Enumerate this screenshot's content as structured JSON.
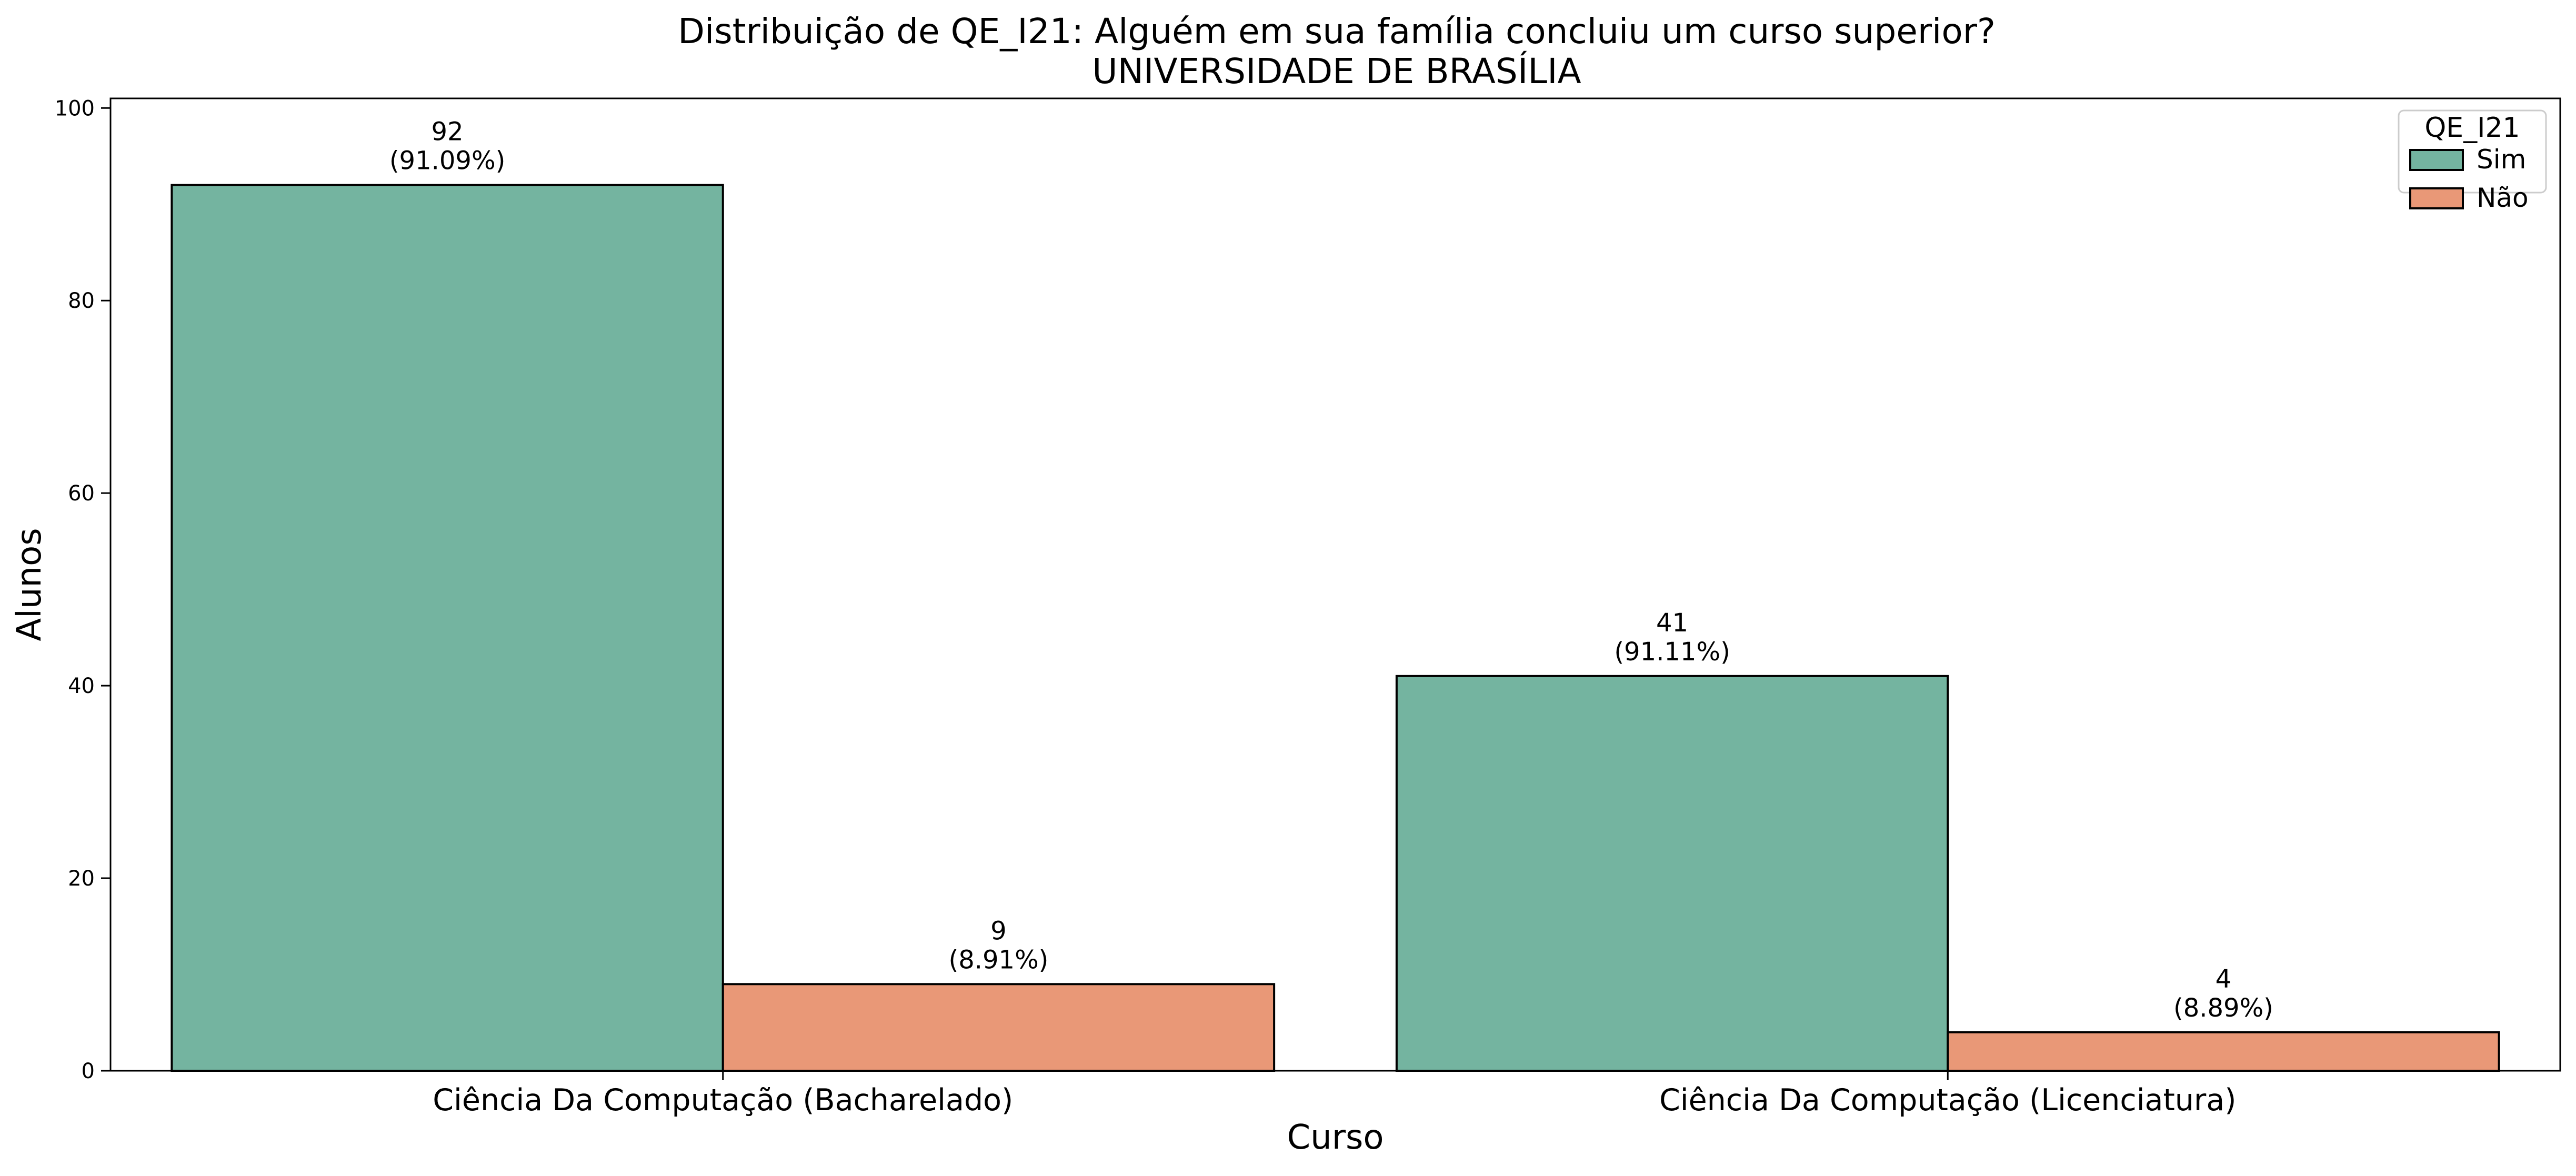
{
  "chart_data": {
    "type": "bar",
    "title": "Distribuição de QE_I21: Alguém em sua família concluiu um curso superior?",
    "subtitle": "UNIVERSIDADE DE BRASÍLIA",
    "xlabel": "Curso",
    "ylabel": "Alunos",
    "categories": [
      "Ciência Da Computação (Bacharelado)",
      "Ciência Da Computação (Licenciatura)"
    ],
    "series": [
      {
        "name": "Sim",
        "color": "#74b4a0",
        "values": [
          92,
          41
        ],
        "labels": [
          [
            "92",
            "(91.09%)"
          ],
          [
            "41",
            "(91.11%)"
          ]
        ]
      },
      {
        "name": "Não",
        "color": "#e99877",
        "values": [
          9,
          4
        ],
        "labels": [
          [
            "9",
            "(8.91%)"
          ],
          [
            "4",
            "(8.89%)"
          ]
        ]
      }
    ],
    "ylim": [
      0,
      101
    ],
    "yticks": [
      0,
      20,
      40,
      60,
      80,
      100
    ],
    "ytick_labels": [
      "0",
      "20",
      "40",
      "60",
      "80",
      "100"
    ],
    "grid": false,
    "legend": {
      "title": "QE_I21",
      "placement": "top-right"
    }
  }
}
